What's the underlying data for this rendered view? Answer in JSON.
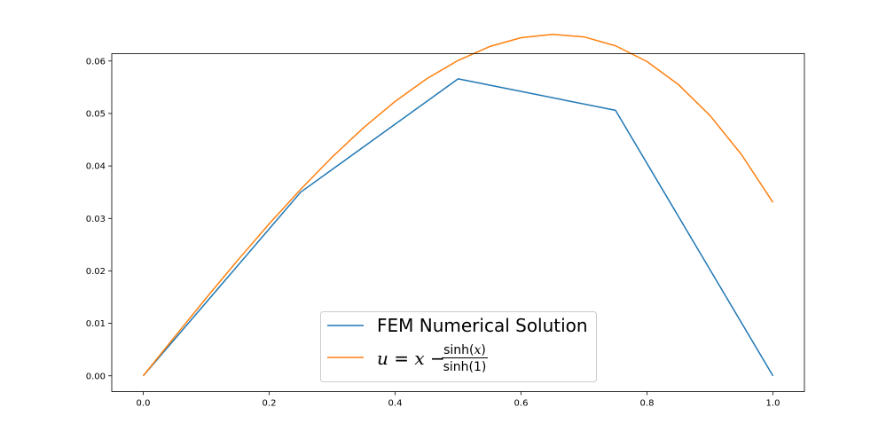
{
  "chart_data": {
    "type": "line",
    "title": "",
    "xlabel": "",
    "ylabel": "",
    "xlim": [
      -0.05,
      1.05
    ],
    "ylim": [
      -0.003,
      0.0614
    ],
    "grid": false,
    "legend_position": "lower center",
    "x_ticks": [
      "0.0",
      "0.2",
      "0.4",
      "0.6",
      "0.8",
      "1.0"
    ],
    "y_ticks": [
      "0.00",
      "0.01",
      "0.02",
      "0.03",
      "0.04",
      "0.05",
      "0.06"
    ],
    "series": [
      {
        "name": "FEM Numerical Solution",
        "color": "#1f77b4",
        "x": [
          0.0,
          0.25,
          0.5,
          0.75,
          1.0
        ],
        "y": [
          0.0,
          0.035,
          0.0566,
          0.0506,
          0.0
        ]
      },
      {
        "name": "u = x − sinh(x)/sinh(1)",
        "color": "#ff7f0e",
        "x": [
          0.0,
          0.05,
          0.1,
          0.15,
          0.2,
          0.25,
          0.3,
          0.35,
          0.4,
          0.45,
          0.5,
          0.55,
          0.6,
          0.65,
          0.7,
          0.75,
          0.8,
          0.85,
          0.9,
          0.95,
          1.0
        ],
        "y": [
          0.0,
          0.00745,
          0.01483,
          0.02203,
          0.02896,
          0.03554,
          0.04169,
          0.0473,
          0.0523,
          0.0566,
          0.06011,
          0.06275,
          0.06444,
          0.06508,
          0.0646,
          0.0629,
          0.0599,
          0.0555,
          0.04962,
          0.04217,
          0.03305
        ]
      }
    ]
  },
  "legend": {
    "fem_label": "FEM Numerical Solution",
    "analytic_lhs": "u",
    "analytic_eq": " = ",
    "analytic_x": "x",
    "analytic_minus": " − ",
    "analytic_num": "sinh(",
    "analytic_num_var": "x",
    "analytic_num_close": ")",
    "analytic_den": "sinh(1)"
  }
}
